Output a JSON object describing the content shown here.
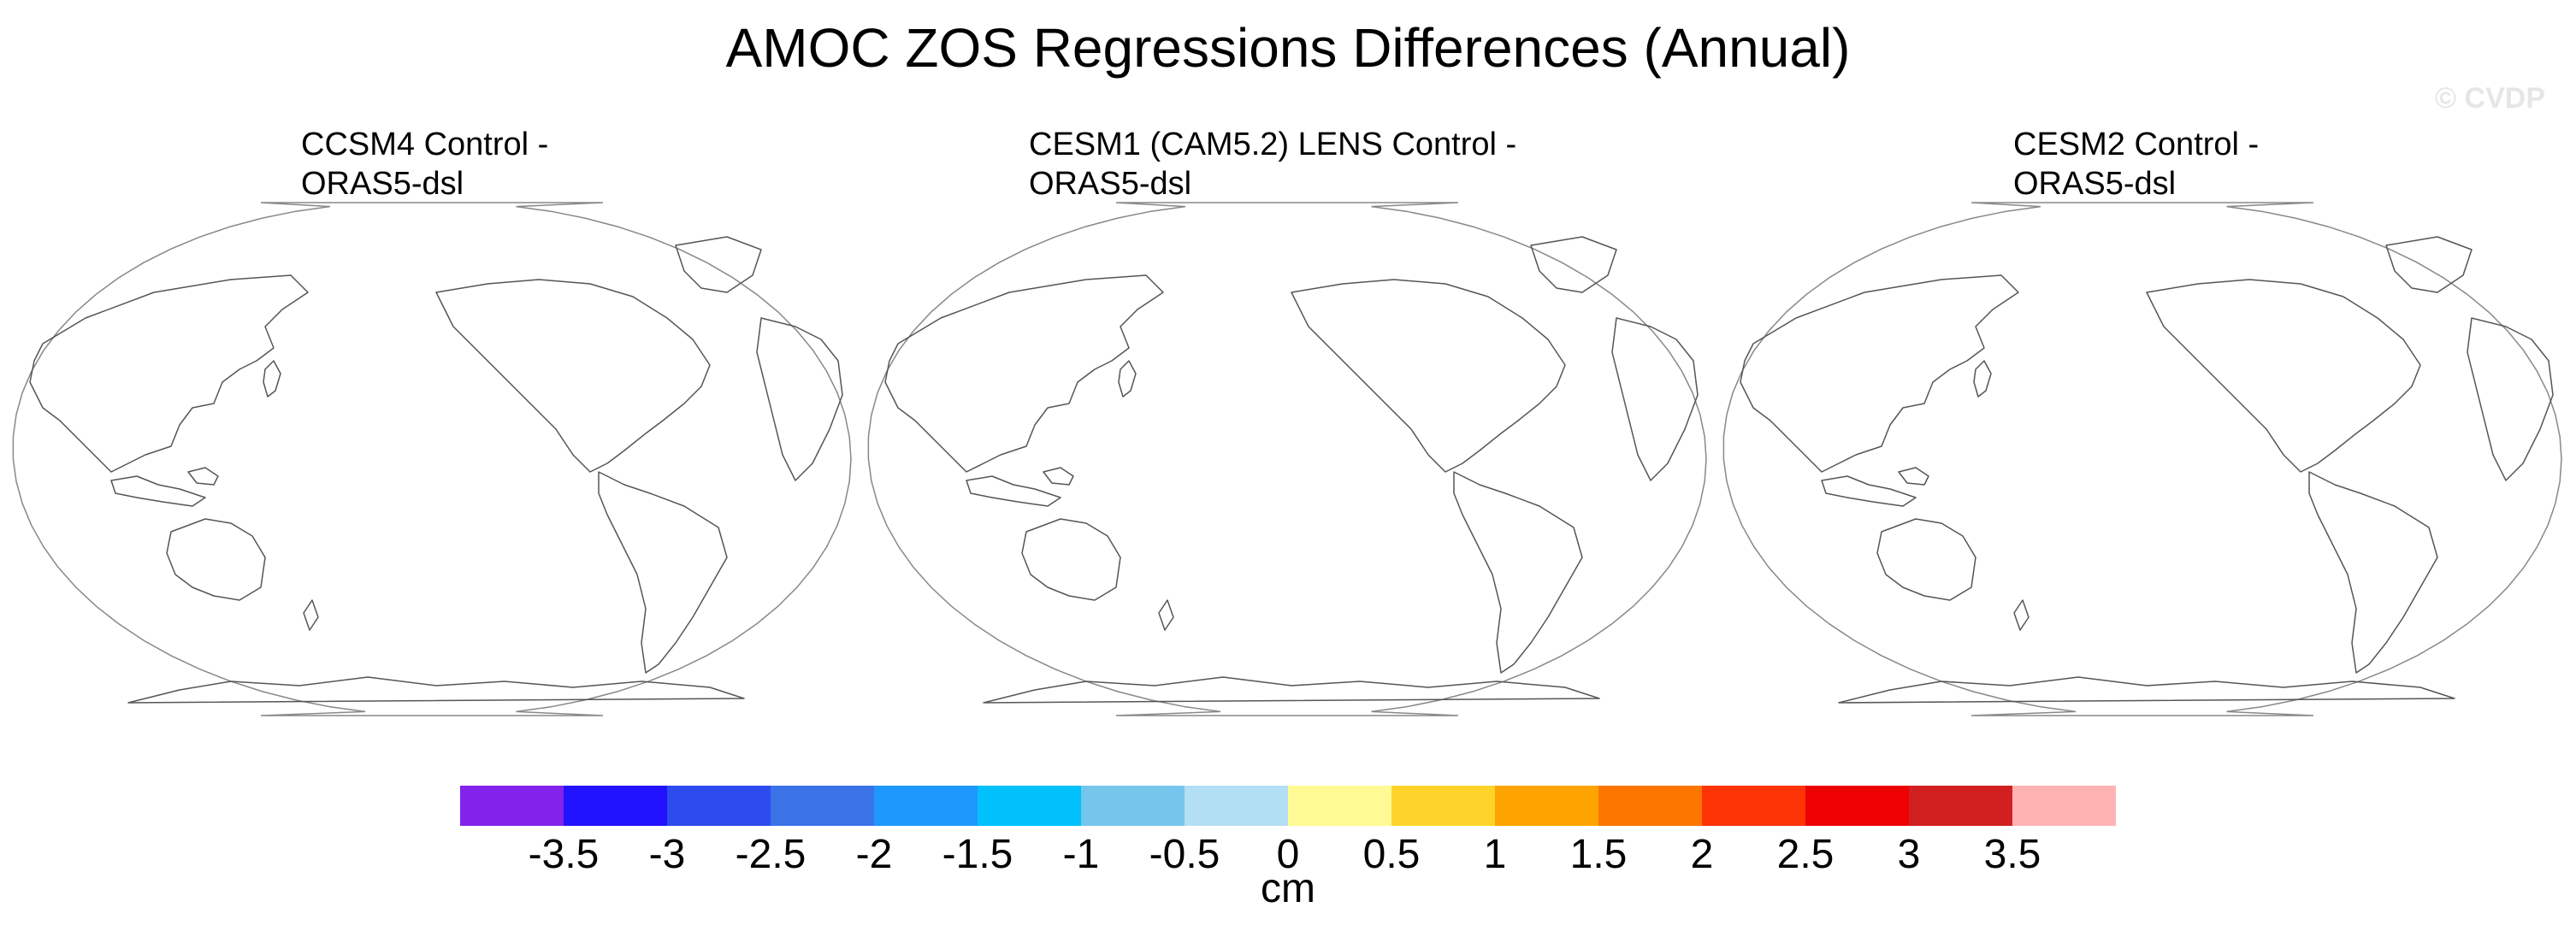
{
  "figure": {
    "title": "AMOC ZOS Regressions Differences (Annual)",
    "watermark": "© CVDP"
  },
  "panels": [
    {
      "title_line1": "CCSM4 Control -",
      "title_line2": "ORAS5-dsl"
    },
    {
      "title_line1": "CESM1 (CAM5.2) LENS Control -",
      "title_line2": "ORAS5-dsl"
    },
    {
      "title_line1": "CESM2 Control -",
      "title_line2": "ORAS5-dsl"
    }
  ],
  "colorbar": {
    "unit_label": "cm",
    "colors": [
      "#8322ea",
      "#2112ff",
      "#2d4cf0",
      "#3a72e8",
      "#1e98fc",
      "#00c1fb",
      "#74c6ec",
      "#b3dff4",
      "#fffa94",
      "#fed42b",
      "#fea400",
      "#fd7700",
      "#fe3406",
      "#ed0103",
      "#d1201f",
      "#ffb3b3"
    ],
    "tick_labels": [
      "-3.5",
      "-3",
      "-2.5",
      "-2",
      "-1.5",
      "-1",
      "-0.5",
      "0",
      "0.5",
      "1",
      "1.5",
      "2",
      "2.5",
      "3",
      "3.5"
    ]
  }
}
